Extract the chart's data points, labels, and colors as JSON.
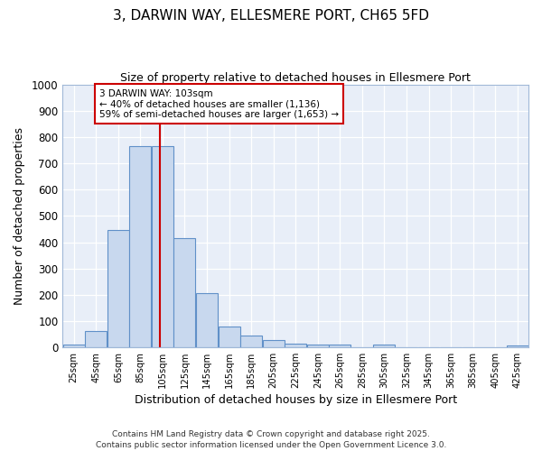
{
  "title": "3, DARWIN WAY, ELLESMERE PORT, CH65 5FD",
  "subtitle": "Size of property relative to detached houses in Ellesmere Port",
  "xlabel": "Distribution of detached houses by size in Ellesmere Port",
  "ylabel": "Number of detached properties",
  "bin_edges": [
    15,
    35,
    55,
    75,
    95,
    115,
    135,
    155,
    175,
    195,
    215,
    235,
    255,
    275,
    295,
    315,
    335,
    355,
    375,
    395,
    415,
    435
  ],
  "bin_labels": [
    "25sqm",
    "45sqm",
    "65sqm",
    "85sqm",
    "105sqm",
    "125sqm",
    "145sqm",
    "165sqm",
    "185sqm",
    "205sqm",
    "225sqm",
    "245sqm",
    "265sqm",
    "285sqm",
    "305sqm",
    "325sqm",
    "345sqm",
    "365sqm",
    "385sqm",
    "405sqm",
    "425sqm"
  ],
  "counts": [
    10,
    63,
    447,
    765,
    765,
    415,
    207,
    77,
    45,
    27,
    12,
    10,
    10,
    0,
    8,
    0,
    0,
    0,
    0,
    0,
    7
  ],
  "bar_color": "#c8d8ee",
  "bar_edge_color": "#6090c8",
  "vline_x": 103,
  "vline_color": "#cc0000",
  "annotation_text": "3 DARWIN WAY: 103sqm\n← 40% of detached houses are smaller (1,136)\n59% of semi-detached houses are larger (1,653) →",
  "annotation_box_color": "#ffffff",
  "annotation_box_edge_color": "#cc0000",
  "ylim": [
    0,
    1000
  ],
  "yticks": [
    0,
    100,
    200,
    300,
    400,
    500,
    600,
    700,
    800,
    900,
    1000
  ],
  "footer_line1": "Contains HM Land Registry data © Crown copyright and database right 2025.",
  "footer_line2": "Contains public sector information licensed under the Open Government Licence 3.0.",
  "fig_bg_color": "#ffffff",
  "plot_bg_color": "#e8eef8"
}
